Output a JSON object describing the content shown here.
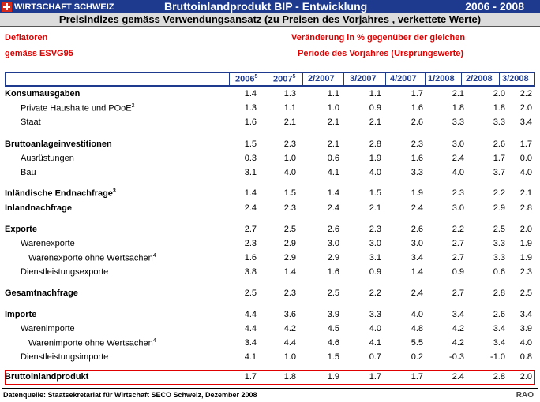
{
  "header": {
    "brand": "WIRTSCHAFT SCHWEIZ",
    "title": "Bruttoinlandprodukt BIP",
    "title_sep": " - ",
    "title_sub": "Entwicklung",
    "years": "2006 - 2008",
    "subtitle": "Preisindizes gemäss Verwendungsansatz (zu Preisen des Vorjahres , verkettete Werte)"
  },
  "notes": {
    "deflator1": "Deflatoren",
    "deflator2": "gemäss ESVG95",
    "change1": "Veränderung in % gegenüber der gleichen",
    "change2": "Periode des Vorjahres (Ursprungswerte)"
  },
  "columns": [
    {
      "label": "2006",
      "sup": "5"
    },
    {
      "label": "2007",
      "sup": "5"
    },
    {
      "label": "2/2007",
      "sup": ""
    },
    {
      "label": "3/2007",
      "sup": ""
    },
    {
      "label": "4/2007",
      "sup": ""
    },
    {
      "label": "1/2008",
      "sup": ""
    },
    {
      "label": "2/2008",
      "sup": ""
    },
    {
      "label": "3/2008",
      "sup": ""
    }
  ],
  "rows": [
    {
      "label": "Konsumausgaben",
      "sup": "",
      "bold": true,
      "indent": 0,
      "values": [
        "1.4",
        "1.3",
        "1.1",
        "1.1",
        "1.7",
        "2.1",
        "2.0",
        "2.2"
      ]
    },
    {
      "label": "Private Haushalte und POoE",
      "sup": "2",
      "bold": false,
      "indent": 1,
      "values": [
        "1.3",
        "1.1",
        "1.0",
        "0.9",
        "1.6",
        "1.8",
        "1.8",
        "2.0"
      ]
    },
    {
      "label": "Staat",
      "sup": "",
      "bold": false,
      "indent": 1,
      "values": [
        "1.6",
        "2.1",
        "2.1",
        "2.1",
        "2.6",
        "3.3",
        "3.3",
        "3.4"
      ]
    },
    {
      "label": "Bruttoanlageinvestitionen",
      "sup": "",
      "bold": true,
      "indent": 0,
      "values": [
        "1.5",
        "2.3",
        "2.1",
        "2.8",
        "2.3",
        "3.0",
        "2.6",
        "1.7"
      ]
    },
    {
      "label": "Ausrüstungen",
      "sup": "",
      "bold": false,
      "indent": 1,
      "values": [
        "0.3",
        "1.0",
        "0.6",
        "1.9",
        "1.6",
        "2.4",
        "1.7",
        "0.0"
      ]
    },
    {
      "label": "Bau",
      "sup": "",
      "bold": false,
      "indent": 1,
      "values": [
        "3.1",
        "4.0",
        "4.1",
        "4.0",
        "3.3",
        "4.0",
        "3.7",
        "4.0"
      ]
    },
    {
      "label": "Inländische Endnachfrage",
      "sup": "3",
      "bold": true,
      "indent": 0,
      "values": [
        "1.4",
        "1.5",
        "1.4",
        "1.5",
        "1.9",
        "2.3",
        "2.2",
        "2.1"
      ]
    },
    {
      "label": "Inlandnachfrage",
      "sup": "",
      "bold": true,
      "indent": 0,
      "values": [
        "2.4",
        "2.3",
        "2.4",
        "2.1",
        "2.4",
        "3.0",
        "2.9",
        "2.8"
      ]
    },
    {
      "label": "Exporte",
      "sup": "",
      "bold": true,
      "indent": 0,
      "values": [
        "2.7",
        "2.5",
        "2.6",
        "2.3",
        "2.6",
        "2.2",
        "2.5",
        "2.0"
      ]
    },
    {
      "label": "Warenexporte",
      "sup": "",
      "bold": false,
      "indent": 1,
      "values": [
        "2.3",
        "2.9",
        "3.0",
        "3.0",
        "3.0",
        "2.7",
        "3.3",
        "1.9"
      ]
    },
    {
      "label": "Warenexporte ohne Wertsachen",
      "sup": "4",
      "bold": false,
      "indent": 2,
      "values": [
        "1.6",
        "2.9",
        "2.9",
        "3.1",
        "3.4",
        "2.7",
        "3.3",
        "1.9"
      ]
    },
    {
      "label": "Dienstleistungsexporte",
      "sup": "",
      "bold": false,
      "indent": 1,
      "values": [
        "3.8",
        "1.4",
        "1.6",
        "0.9",
        "1.4",
        "0.9",
        "0.6",
        "2.3"
      ]
    },
    {
      "label": "Gesamtnachfrage",
      "sup": "",
      "bold": true,
      "indent": 0,
      "values": [
        "2.5",
        "2.3",
        "2.5",
        "2.2",
        "2.4",
        "2.7",
        "2.8",
        "2.5"
      ]
    },
    {
      "label": "Importe",
      "sup": "",
      "bold": true,
      "indent": 0,
      "values": [
        "4.4",
        "3.6",
        "3.9",
        "3.3",
        "4.0",
        "3.4",
        "2.6",
        "3.4"
      ]
    },
    {
      "label": "Warenimporte",
      "sup": "",
      "bold": false,
      "indent": 1,
      "values": [
        "4.4",
        "4.2",
        "4.5",
        "4.0",
        "4.8",
        "4.2",
        "3.4",
        "3.9"
      ]
    },
    {
      "label": "Warenimporte ohne Wertsachen",
      "sup": "4",
      "bold": false,
      "indent": 2,
      "values": [
        "3.4",
        "4.4",
        "4.6",
        "4.1",
        "5.5",
        "4.2",
        "3.4",
        "4.0"
      ]
    },
    {
      "label": "Dienstleistungsimporte",
      "sup": "",
      "bold": false,
      "indent": 1,
      "values": [
        "4.1",
        "1.0",
        "1.5",
        "0.7",
        "0.2",
        "-0.3",
        "-1.0",
        "0.8"
      ]
    },
    {
      "label": "Bruttoinlandprodukt",
      "sup": "",
      "bold": true,
      "indent": 0,
      "red": true,
      "values": [
        "1.7",
        "1.8",
        "1.9",
        "1.7",
        "1.7",
        "2.4",
        "2.8",
        "2.0"
      ]
    }
  ],
  "footer": {
    "source": "Datenquelle: Staatsekretariat für Wirtschaft SECO Schweiz, Dezember 2008",
    "rao": "RAO"
  },
  "colors": {
    "accent": "#1d3a8f",
    "highlight": "#e00000",
    "swiss_red": "#d52b1e"
  }
}
